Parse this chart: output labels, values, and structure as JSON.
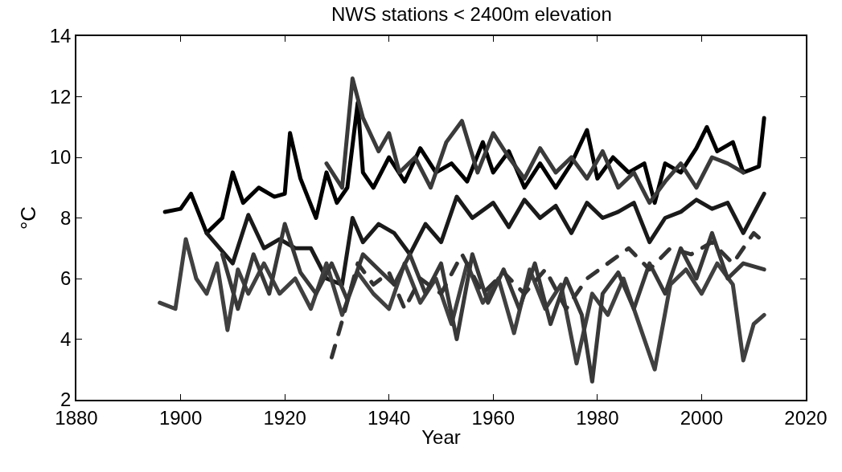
{
  "chart_data": {
    "type": "line",
    "title": "NWS stations < 2400m elevation",
    "xlabel": "Year",
    "ylabel": "°C",
    "xlim": [
      1880,
      2020
    ],
    "xticks": [
      1880,
      1900,
      1920,
      1940,
      1960,
      1980,
      2000,
      2020
    ],
    "ylim": [
      2,
      14
    ],
    "yticks": [
      2,
      4,
      6,
      8,
      10,
      12,
      14
    ],
    "marker": "none",
    "series": [
      {
        "color": "#000000",
        "line_style": "solid",
        "x": [
          1897,
          1900,
          1902,
          1905,
          1908,
          1910,
          1912,
          1915,
          1918,
          1920,
          1921,
          1923,
          1926,
          1928,
          1930,
          1932,
          1934,
          1935,
          1937,
          1940,
          1943,
          1946,
          1949,
          1952,
          1955,
          1958,
          1960,
          1963,
          1966,
          1969,
          1972,
          1975,
          1978,
          1980,
          1983,
          1986,
          1989,
          1991,
          1993,
          1996,
          1999,
          2001,
          2003,
          2006,
          2008,
          2011,
          2012
        ],
        "values": [
          8.2,
          8.3,
          8.8,
          7.5,
          8.0,
          9.5,
          8.5,
          9.0,
          8.7,
          8.8,
          10.8,
          9.3,
          8.0,
          9.5,
          8.5,
          9.0,
          11.8,
          9.5,
          9.0,
          10.0,
          9.2,
          10.3,
          9.5,
          9.8,
          9.2,
          10.5,
          9.5,
          10.2,
          9.0,
          9.8,
          9.0,
          9.8,
          10.9,
          9.3,
          10.0,
          9.5,
          9.8,
          8.5,
          9.8,
          9.5,
          10.3,
          11.0,
          10.2,
          10.5,
          9.5,
          9.7,
          11.3
        ]
      },
      {
        "color": "#1a1a1a",
        "line_style": "solid",
        "x": [
          1905,
          1910,
          1913,
          1916,
          1919,
          1922,
          1925,
          1928,
          1931,
          1933,
          1935,
          1938,
          1941,
          1944,
          1947,
          1950,
          1953,
          1956,
          1960,
          1963,
          1966,
          1969,
          1972,
          1975,
          1978,
          1981,
          1984,
          1987,
          1990,
          1993,
          1996,
          1999,
          2002,
          2005,
          2008,
          2012
        ],
        "values": [
          7.5,
          6.5,
          8.1,
          7.0,
          7.3,
          7.0,
          7.0,
          6.0,
          5.8,
          8.0,
          7.2,
          7.8,
          7.5,
          6.8,
          7.8,
          7.2,
          8.7,
          8.0,
          8.5,
          7.7,
          8.6,
          8.0,
          8.4,
          7.5,
          8.5,
          8.0,
          8.2,
          8.5,
          7.2,
          8.0,
          8.2,
          8.6,
          8.3,
          8.5,
          7.5,
          8.8
        ]
      },
      {
        "color": "#3a3a3a",
        "line_style": "solid",
        "x": [
          1928,
          1931,
          1933,
          1935,
          1938,
          1940,
          1942,
          1945,
          1948,
          1951,
          1954,
          1957,
          1960,
          1963,
          1966,
          1969,
          1972,
          1975,
          1978,
          1981,
          1984,
          1987,
          1990,
          1993,
          1996,
          1999,
          2002,
          2005,
          2008
        ],
        "values": [
          9.8,
          9.0,
          12.6,
          11.3,
          10.2,
          10.8,
          9.5,
          10.0,
          9.0,
          10.5,
          11.2,
          9.5,
          10.8,
          10.0,
          9.3,
          10.3,
          9.5,
          10.0,
          9.3,
          10.2,
          9.0,
          9.5,
          8.5,
          9.2,
          9.8,
          9.0,
          10.0,
          9.8,
          9.5
        ]
      },
      {
        "color": "#404040",
        "line_style": "solid",
        "x": [
          1896,
          1899,
          1901,
          1903,
          1905,
          1907,
          1909,
          1911,
          1913,
          1916,
          1919,
          1922,
          1925,
          1928,
          1931,
          1934,
          1937,
          1940,
          1943,
          1946,
          1949,
          1952,
          1955,
          1958,
          1961,
          1964,
          1967,
          1970,
          1973,
          1976,
          1979,
          1982,
          1985,
          1988,
          1991,
          1994,
          1997,
          2000,
          2003,
          2006,
          2008,
          2010,
          2012
        ],
        "values": [
          5.2,
          5.0,
          7.3,
          6.0,
          5.5,
          6.5,
          4.3,
          6.3,
          5.5,
          6.5,
          5.5,
          6.0,
          5.0,
          6.5,
          4.8,
          6.2,
          5.5,
          5.0,
          6.5,
          5.2,
          6.0,
          4.5,
          6.5,
          5.2,
          6.0,
          4.2,
          6.3,
          5.0,
          5.8,
          3.2,
          5.5,
          4.8,
          6.0,
          4.5,
          3.0,
          5.8,
          6.3,
          5.5,
          6.5,
          5.8,
          3.3,
          4.5,
          4.8
        ]
      },
      {
        "color": "#383838",
        "line_style": "solid",
        "x": [
          1908,
          1911,
          1914,
          1917,
          1920,
          1923,
          1926,
          1929,
          1932,
          1935,
          1938,
          1941,
          1944,
          1947,
          1950,
          1953,
          1956,
          1959,
          1962,
          1965,
          1968,
          1971,
          1974,
          1977,
          1979,
          1981,
          1984,
          1987,
          1990,
          1993,
          1996,
          1999,
          2002,
          2005,
          2008,
          2012
        ],
        "values": [
          6.8,
          5.0,
          6.8,
          5.5,
          7.8,
          6.2,
          5.5,
          6.5,
          5.3,
          6.8,
          6.3,
          5.8,
          6.8,
          5.5,
          6.5,
          4.0,
          6.8,
          5.2,
          6.3,
          5.0,
          6.5,
          4.5,
          6.0,
          4.8,
          2.6,
          5.5,
          6.2,
          5.0,
          6.5,
          5.5,
          7.0,
          6.0,
          7.5,
          6.0,
          6.5,
          6.3
        ]
      },
      {
        "color": "#333333",
        "line_style": "dashed",
        "x": [
          1929,
          1931,
          1934,
          1937,
          1940,
          1943,
          1946,
          1950,
          1954,
          1958,
          1962,
          1966,
          1970,
          1974,
          1978,
          1982,
          1986,
          1990,
          1994,
          1998,
          2002,
          2006,
          2010,
          2012
        ],
        "values": [
          3.4,
          4.6,
          6.5,
          5.8,
          6.2,
          5.0,
          6.0,
          5.5,
          6.8,
          5.5,
          6.2,
          5.5,
          6.3,
          5.0,
          6.0,
          6.5,
          7.0,
          6.3,
          7.0,
          6.8,
          7.2,
          6.5,
          7.5,
          7.2
        ]
      }
    ]
  }
}
